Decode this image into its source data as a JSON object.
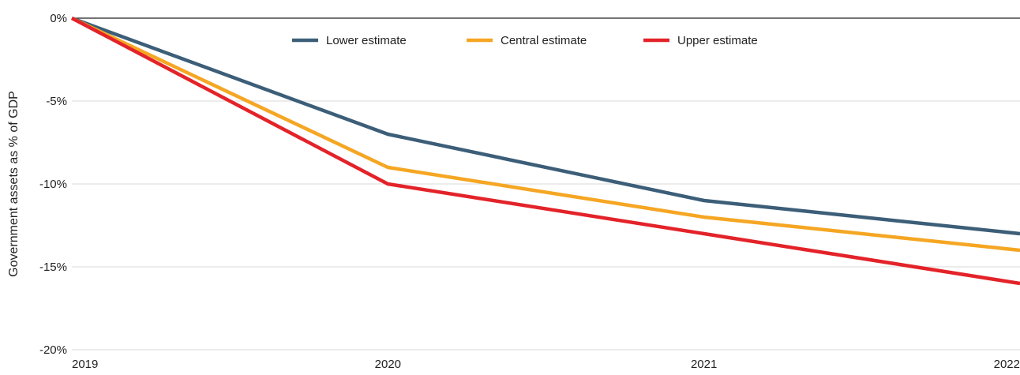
{
  "chart_data": {
    "type": "line",
    "title": "",
    "xlabel": "",
    "ylabel": "Government assets as % of GDP",
    "x": [
      "2019",
      "2020",
      "2021",
      "2022"
    ],
    "y_ticks": [
      "0%",
      "-5%",
      "-10%",
      "-15%",
      "-20%"
    ],
    "y_tick_values": [
      0,
      -5,
      -10,
      -15,
      -20
    ],
    "ylim": [
      -20,
      0
    ],
    "grid": true,
    "legend_position": "top-center",
    "series": [
      {
        "name": "Lower estimate",
        "color": "#3c5e78",
        "values": [
          0,
          -7,
          -11,
          -13
        ]
      },
      {
        "name": "Central estimate",
        "color": "#f5a623",
        "values": [
          0,
          -9,
          -12,
          -14
        ]
      },
      {
        "name": "Upper estimate",
        "color": "#e32329",
        "values": [
          0,
          -10,
          -13,
          -16
        ]
      }
    ]
  }
}
